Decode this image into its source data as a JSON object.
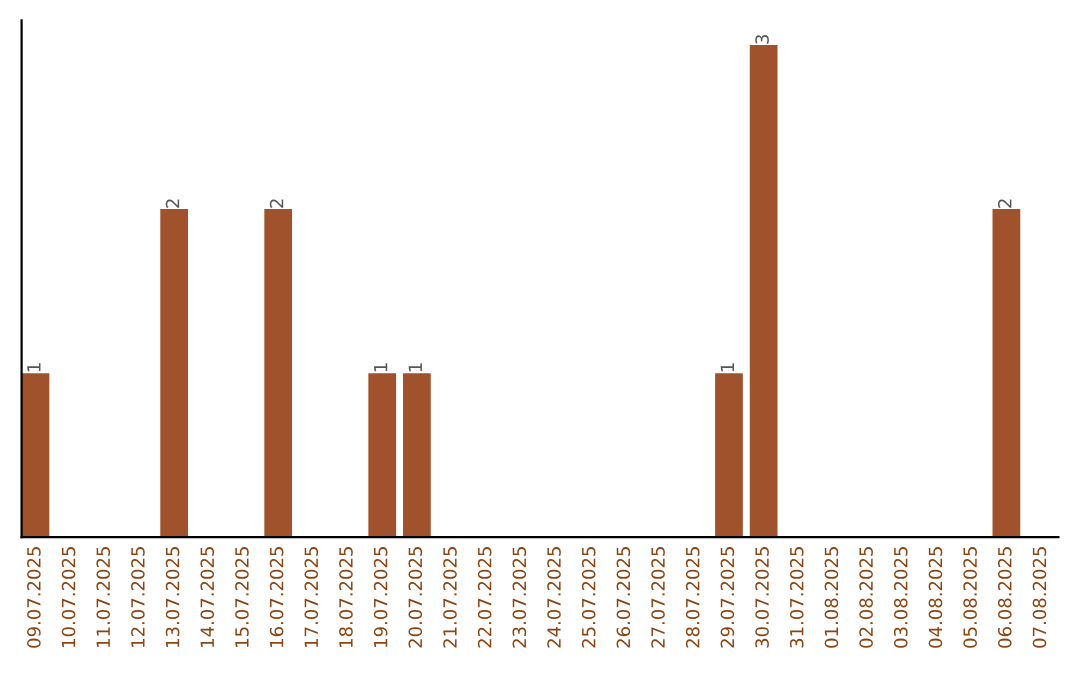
{
  "chart_data": {
    "type": "bar",
    "categories": [
      "09.07.2025",
      "10.07.2025",
      "11.07.2025",
      "12.07.2025",
      "13.07.2025",
      "14.07.2025",
      "15.07.2025",
      "16.07.2025",
      "17.07.2025",
      "18.07.2025",
      "19.07.2025",
      "20.07.2025",
      "21.07.2025",
      "22.07.2025",
      "23.07.2025",
      "24.07.2025",
      "25.07.2025",
      "26.07.2025",
      "27.07.2025",
      "28.07.2025",
      "29.07.2025",
      "30.07.2025",
      "31.07.2025",
      "01.08.2025",
      "02.08.2025",
      "03.08.2025",
      "04.08.2025",
      "05.08.2025",
      "06.08.2025",
      "07.08.2025"
    ],
    "values": [
      1,
      0,
      0,
      0,
      2,
      0,
      0,
      2,
      0,
      0,
      1,
      1,
      0,
      0,
      0,
      0,
      0,
      0,
      0,
      0,
      1,
      3,
      0,
      0,
      0,
      0,
      0,
      0,
      2,
      0
    ],
    "color": "#a0522d",
    "value_labels": [
      "1",
      null,
      null,
      null,
      "2",
      null,
      null,
      "2",
      null,
      null,
      "1",
      "1",
      null,
      null,
      null,
      null,
      null,
      null,
      null,
      null,
      "1",
      "3",
      null,
      null,
      null,
      null,
      null,
      null,
      "2",
      null
    ],
    "tick_labels": "x",
    "grid": false,
    "legend": false
  }
}
